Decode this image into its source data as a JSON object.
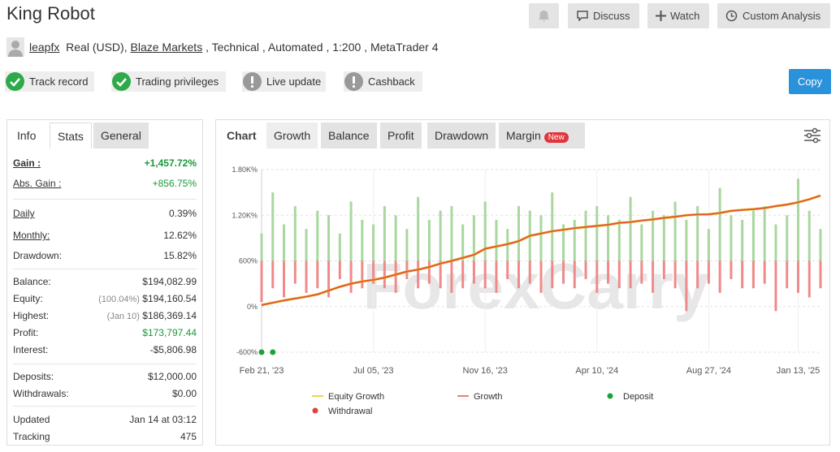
{
  "header": {
    "title": "King Robot",
    "buttons": [
      "Discuss",
      "Watch",
      "Custom Analysis"
    ],
    "user": "leapfx",
    "account": "Real (USD),",
    "broker": "Blaze Markets",
    "details": ", Technical , Automated , 1:200 , MetaTrader 4"
  },
  "badges": [
    "Track record",
    "Trading privileges",
    "Live update",
    "Cashback"
  ],
  "copy_button": "Copy",
  "left_tabs": [
    "Info",
    "Stats",
    "General"
  ],
  "stats": [
    [
      {
        "label": "Gain :",
        "value": "+1,457.72%"
      },
      {
        "label": "Abs. Gain :",
        "value": "+856.75%"
      }
    ],
    [
      {
        "label": "Daily",
        "value": "0.39%"
      },
      {
        "label": "Monthly:",
        "value": "12.62%"
      },
      {
        "label": "Drawdown:",
        "value": "15.82%"
      }
    ],
    [
      {
        "label": "Balance:",
        "value": "$194,082.99"
      },
      {
        "label": "Equity:",
        "note": "(100.04%)",
        "value": "$194,160.54"
      },
      {
        "label": "Highest:",
        "note": "(Jan 10)",
        "value": "$186,369.14"
      },
      {
        "label": "Profit:",
        "value": "$173,797.44"
      },
      {
        "label": "Interest:",
        "value": "-$5,806.98"
      }
    ],
    [
      {
        "label": "Deposits:",
        "value": "$12,000.00"
      },
      {
        "label": "Withdrawals:",
        "value": "$0.00"
      }
    ],
    [
      {
        "label": "Updated",
        "value": "Jan 14 at 03:12"
      },
      {
        "label": "Tracking",
        "value": "475"
      }
    ]
  ],
  "chart_tabs": [
    "Chart",
    "Growth",
    "Balance",
    "Profit",
    "Drawdown",
    "Margin"
  ],
  "new_badge": "New",
  "watermark": "ForexCarry",
  "chart_data": {
    "type": "line",
    "categories": [
      "Feb 21, '23",
      null,
      null,
      null,
      null,
      null,
      null,
      null,
      null,
      null,
      "Jul 05, '23",
      null,
      null,
      null,
      null,
      null,
      null,
      null,
      null,
      null,
      "Nov 16, '23",
      null,
      null,
      null,
      null,
      null,
      null,
      null,
      null,
      null,
      "Apr 10, '24",
      null,
      null,
      null,
      null,
      null,
      null,
      null,
      null,
      null,
      "Aug 27, '24",
      null,
      null,
      null,
      null,
      null,
      null,
      null,
      "Jan 13, '25",
      null,
      null
    ],
    "ylim": [
      -600,
      1800
    ],
    "yticks": [
      {
        "value": 1800,
        "label": "1.80K%"
      },
      {
        "value": 1200,
        "label": "1.20K%"
      },
      {
        "value": 600,
        "label": "600%"
      },
      {
        "value": 0,
        "label": "0%"
      },
      {
        "value": -600,
        "label": "-600%"
      }
    ],
    "y2lim": [
      -1,
      1
    ],
    "grid": true,
    "series": [
      {
        "type": "bar",
        "axis": "y2",
        "color": "#a9d79f",
        "values": [
          0.3,
          0.75,
          0.4,
          0.6,
          0.35,
          0.55,
          0.5,
          0.3,
          0.65,
          0.45,
          0.4,
          0.6,
          0.5,
          0.35,
          0.7,
          0.45,
          0.55,
          0.6,
          0.4,
          0.5,
          0.65,
          0.45,
          0.35,
          0.6,
          0.55,
          0.5,
          0.75,
          0.4,
          0.45,
          0.55,
          0.6,
          0.5,
          0.45,
          0.7,
          0.4,
          0.55,
          0.5,
          0.65,
          0.45,
          0.6,
          0.35,
          0.8,
          0.5,
          0.45,
          0.55,
          0.6,
          0.4,
          0.5,
          0.9,
          0.55,
          0.35
        ]
      },
      {
        "type": "bar",
        "axis": "y2",
        "color": "#f08a8a",
        "values": [
          -0.45,
          -0.3,
          -0.4,
          -0.25,
          -0.35,
          -0.3,
          -0.4,
          -0.2,
          -0.35,
          -0.3,
          -0.25,
          -0.3,
          -0.35,
          -0.2,
          -0.3,
          -0.25,
          -0.3,
          -0.35,
          -0.3,
          -0.25,
          -0.3,
          -0.35,
          -0.2,
          -0.3,
          -0.25,
          -0.35,
          -0.3,
          -0.25,
          -0.3,
          -0.2,
          -0.35,
          -0.25,
          -0.3,
          -0.3,
          -0.25,
          -0.35,
          -0.2,
          -0.3,
          -0.55,
          -0.3,
          -0.25,
          -0.35,
          -0.2,
          -0.3,
          -0.3,
          -0.25,
          -0.55,
          -0.3,
          -0.35,
          -0.4,
          -0.3
        ]
      },
      {
        "type": "line",
        "name": "Equity Growth",
        "color": "#f0c419",
        "values": [
          20,
          50,
          80,
          105,
          130,
          160,
          210,
          260,
          300,
          330,
          350,
          380,
          420,
          460,
          485,
          520,
          565,
          600,
          640,
          680,
          760,
          790,
          820,
          860,
          930,
          960,
          990,
          1010,
          1030,
          1045,
          1060,
          1075,
          1100,
          1110,
          1130,
          1145,
          1165,
          1180,
          1200,
          1210,
          1212,
          1230,
          1257,
          1270,
          1280,
          1295,
          1320,
          1340,
          1370,
          1410,
          1458
        ]
      },
      {
        "type": "line",
        "name": "Growth",
        "color": "#e05a3a",
        "values": [
          20,
          50,
          80,
          105,
          130,
          160,
          210,
          260,
          300,
          330,
          350,
          380,
          420,
          460,
          485,
          520,
          565,
          600,
          640,
          680,
          760,
          790,
          820,
          860,
          930,
          960,
          990,
          1010,
          1030,
          1045,
          1060,
          1075,
          1100,
          1110,
          1130,
          1145,
          1165,
          1180,
          1200,
          1210,
          1212,
          1230,
          1257,
          1270,
          1280,
          1295,
          1320,
          1340,
          1370,
          1410,
          1458
        ]
      },
      {
        "type": "scatter",
        "name": "Deposit",
        "color": "#1aa33a",
        "values": [
          -600,
          -600,
          null,
          null,
          null,
          null,
          null,
          null,
          null,
          null,
          null,
          null,
          null,
          null,
          null,
          null,
          null,
          null,
          null,
          null,
          null,
          null,
          null,
          null,
          null,
          null,
          null,
          null,
          null,
          null,
          null,
          null,
          null,
          null,
          null,
          null,
          null,
          null,
          null,
          null,
          null,
          null,
          null,
          null,
          null,
          null,
          null,
          null,
          null,
          null,
          null
        ]
      },
      {
        "type": "scatter",
        "name": "Withdrawal",
        "color": "#e04040",
        "values": [
          null,
          null,
          null,
          null,
          null,
          null,
          null,
          null,
          null,
          null,
          null,
          null,
          null,
          null,
          null,
          null,
          null,
          null,
          null,
          null,
          null,
          null,
          null,
          null,
          null,
          null,
          null,
          null,
          null,
          null,
          null,
          null,
          null,
          null,
          null,
          null,
          null,
          null,
          null,
          null,
          null,
          null,
          null,
          null,
          null,
          null,
          null,
          null,
          null,
          null,
          null
        ]
      }
    ]
  }
}
